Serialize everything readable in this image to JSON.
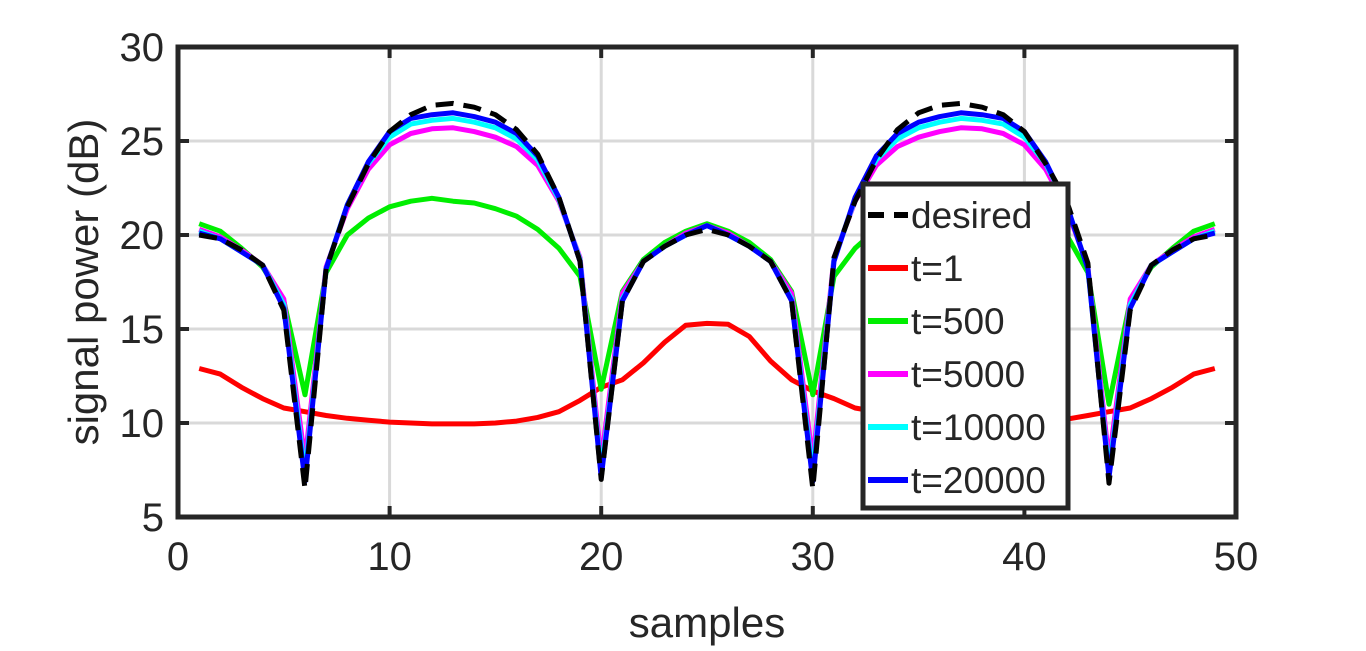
{
  "chart_data": {
    "type": "line",
    "title": "",
    "xlabel": "samples",
    "ylabel": "signal power (dB)",
    "xlim": [
      0,
      50
    ],
    "ylim": [
      5,
      30
    ],
    "xticks": [
      0,
      10,
      20,
      30,
      40,
      50
    ],
    "yticks": [
      5,
      10,
      15,
      20,
      25,
      30
    ],
    "grid": true,
    "legend_position": "center-right",
    "x": [
      1,
      2,
      3,
      4,
      5,
      6,
      7,
      8,
      9,
      10,
      11,
      12,
      13,
      14,
      15,
      16,
      17,
      18,
      19,
      20,
      21,
      22,
      23,
      24,
      25,
      26,
      27,
      28,
      29,
      30,
      31,
      32,
      33,
      34,
      35,
      36,
      37,
      38,
      39,
      40,
      41,
      42,
      43,
      44,
      45,
      46,
      47,
      48,
      49
    ],
    "series": [
      {
        "name": "desired",
        "color": "#000000",
        "dashed": true,
        "values": [
          20.0,
          19.8,
          19.2,
          18.4,
          16.0,
          6.5,
          18.2,
          21.5,
          23.8,
          25.5,
          26.4,
          26.9,
          27.0,
          26.8,
          26.4,
          25.6,
          24.3,
          22.0,
          18.6,
          7.0,
          16.5,
          18.6,
          19.4,
          20.0,
          20.3,
          20.0,
          19.4,
          18.6,
          16.5,
          6.5,
          18.8,
          21.8,
          24.0,
          25.6,
          26.5,
          26.9,
          27.0,
          26.8,
          26.4,
          25.5,
          23.8,
          21.8,
          18.5,
          6.8,
          16.0,
          18.4,
          19.2,
          19.8,
          20.0
        ]
      },
      {
        "name": "t=1",
        "color": "#ff0000",
        "dashed": false,
        "values": [
          12.9,
          12.6,
          11.9,
          11.3,
          10.8,
          10.6,
          10.4,
          10.25,
          10.15,
          10.05,
          10.0,
          9.95,
          9.95,
          9.95,
          10.0,
          10.1,
          10.3,
          10.6,
          11.2,
          11.9,
          12.3,
          13.2,
          14.3,
          15.2,
          15.3,
          15.25,
          14.6,
          13.3,
          12.3,
          11.7,
          11.3,
          10.8,
          10.6,
          10.3,
          10.15,
          10.05,
          10.0,
          9.95,
          9.95,
          10.0,
          10.05,
          10.2,
          10.4,
          10.6,
          10.8,
          11.3,
          11.9,
          12.6,
          12.9
        ]
      },
      {
        "name": "t=500",
        "color": "#00ee00",
        "dashed": false,
        "values": [
          20.6,
          20.2,
          19.3,
          18.3,
          16.5,
          11.5,
          18.0,
          20.0,
          20.9,
          21.5,
          21.8,
          21.95,
          21.8,
          21.7,
          21.4,
          21.0,
          20.3,
          19.3,
          17.8,
          11.8,
          17.0,
          18.7,
          19.6,
          20.2,
          20.6,
          20.2,
          19.6,
          18.7,
          17.0,
          11.5,
          17.8,
          19.3,
          20.3,
          21.0,
          21.4,
          21.7,
          21.8,
          21.9,
          21.8,
          21.5,
          20.9,
          20.0,
          18.0,
          11.0,
          16.5,
          18.3,
          19.3,
          20.2,
          20.6
        ]
      },
      {
        "name": "t=5000",
        "color": "#ff00ff",
        "dashed": false,
        "values": [
          20.3,
          19.9,
          19.2,
          18.4,
          16.6,
          8.0,
          18.3,
          21.4,
          23.5,
          24.8,
          25.4,
          25.65,
          25.7,
          25.5,
          25.2,
          24.7,
          23.7,
          21.8,
          18.8,
          8.0,
          16.9,
          18.6,
          19.4,
          20.1,
          20.5,
          20.1,
          19.4,
          18.6,
          16.9,
          8.0,
          18.8,
          21.8,
          23.7,
          24.7,
          25.2,
          25.5,
          25.7,
          25.65,
          25.4,
          24.8,
          23.5,
          21.4,
          18.3,
          8.0,
          16.6,
          18.4,
          19.2,
          19.9,
          20.3
        ]
      },
      {
        "name": "t=10000",
        "color": "#00ffff",
        "dashed": false,
        "values": [
          20.2,
          19.8,
          19.1,
          18.4,
          16.3,
          7.3,
          18.2,
          21.6,
          23.8,
          25.2,
          25.9,
          26.1,
          26.2,
          26.0,
          25.7,
          25.1,
          24.0,
          21.9,
          18.7,
          7.4,
          16.6,
          18.6,
          19.4,
          20.0,
          20.5,
          20.0,
          19.4,
          18.6,
          16.6,
          7.3,
          18.7,
          21.9,
          24.0,
          25.1,
          25.7,
          26.0,
          26.2,
          26.1,
          25.9,
          25.2,
          23.8,
          21.6,
          18.2,
          7.4,
          16.3,
          18.4,
          19.1,
          19.8,
          20.2
        ]
      },
      {
        "name": "t=20000",
        "color": "#0000ff",
        "dashed": false,
        "values": [
          20.1,
          19.8,
          19.1,
          18.4,
          16.1,
          6.9,
          18.2,
          21.6,
          23.9,
          25.5,
          26.2,
          26.4,
          26.5,
          26.3,
          26.0,
          25.4,
          24.2,
          22.0,
          18.6,
          7.1,
          16.5,
          18.6,
          19.4,
          20.0,
          20.5,
          20.0,
          19.4,
          18.6,
          16.5,
          6.9,
          18.6,
          22.0,
          24.2,
          25.4,
          26.0,
          26.3,
          26.5,
          26.4,
          26.2,
          25.5,
          23.9,
          21.6,
          18.2,
          7.1,
          16.1,
          18.4,
          19.1,
          19.8,
          20.1
        ]
      }
    ]
  }
}
